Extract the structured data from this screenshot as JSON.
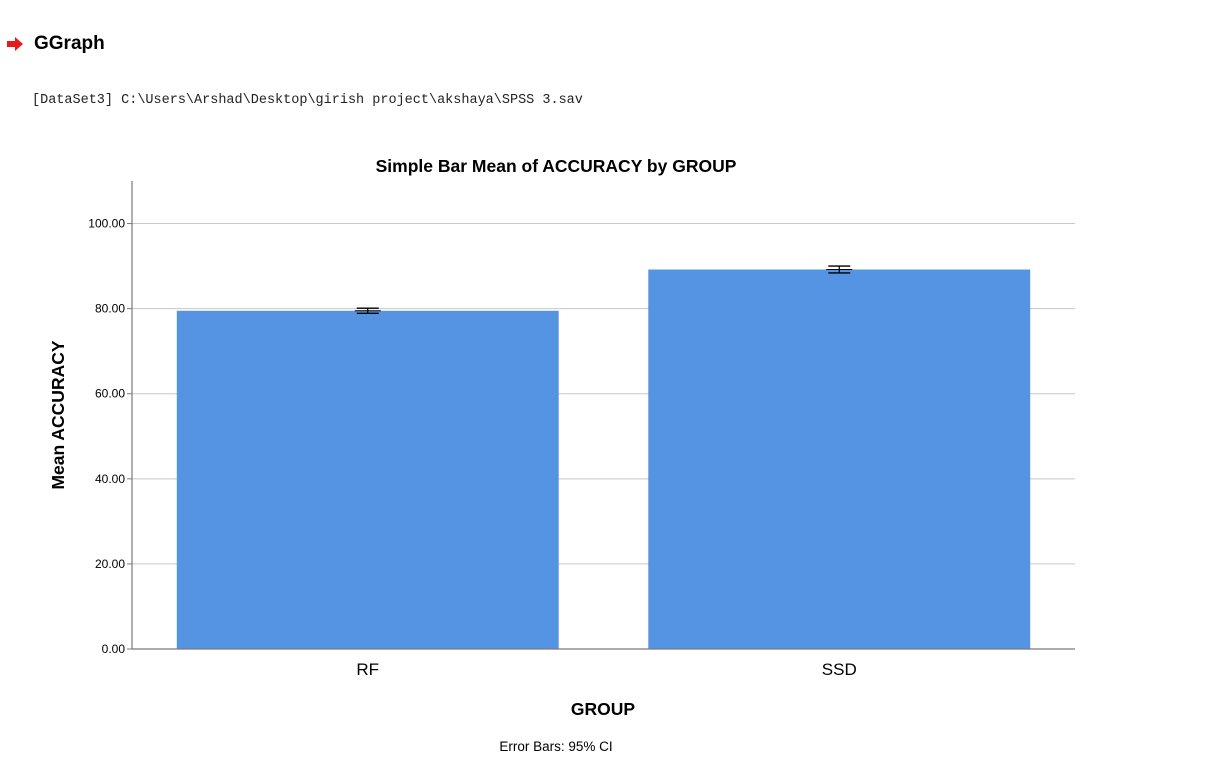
{
  "header": {
    "title": "GGraph",
    "arrow_icon": "red-arrow-right-icon",
    "arrow_color": "#e8191b"
  },
  "dataset_line": "[DataSet3] C:\\Users\\Arshad\\Desktop\\girish project\\akshaya\\SPSS 3.sav",
  "chart_data": {
    "type": "bar",
    "title": "Simple Bar Mean of ACCURACY by GROUP",
    "xlabel": "GROUP",
    "ylabel": "Mean ACCURACY",
    "categories": [
      "RF",
      "SSD"
    ],
    "values": [
      79.5,
      89.2
    ],
    "error_bars": {
      "type": "95% CI",
      "lower": [
        78.9,
        88.4
      ],
      "upper": [
        80.1,
        90.0
      ]
    },
    "ylim": [
      0,
      110
    ],
    "yticks": [
      0,
      20,
      40,
      60,
      80,
      100
    ],
    "ytick_labels": [
      "0.00",
      "20.00",
      "40.00",
      "60.00",
      "80.00",
      "100.00"
    ],
    "grid": true,
    "bar_color": "#5594e3",
    "footnote": "Error Bars: 95% CI"
  }
}
